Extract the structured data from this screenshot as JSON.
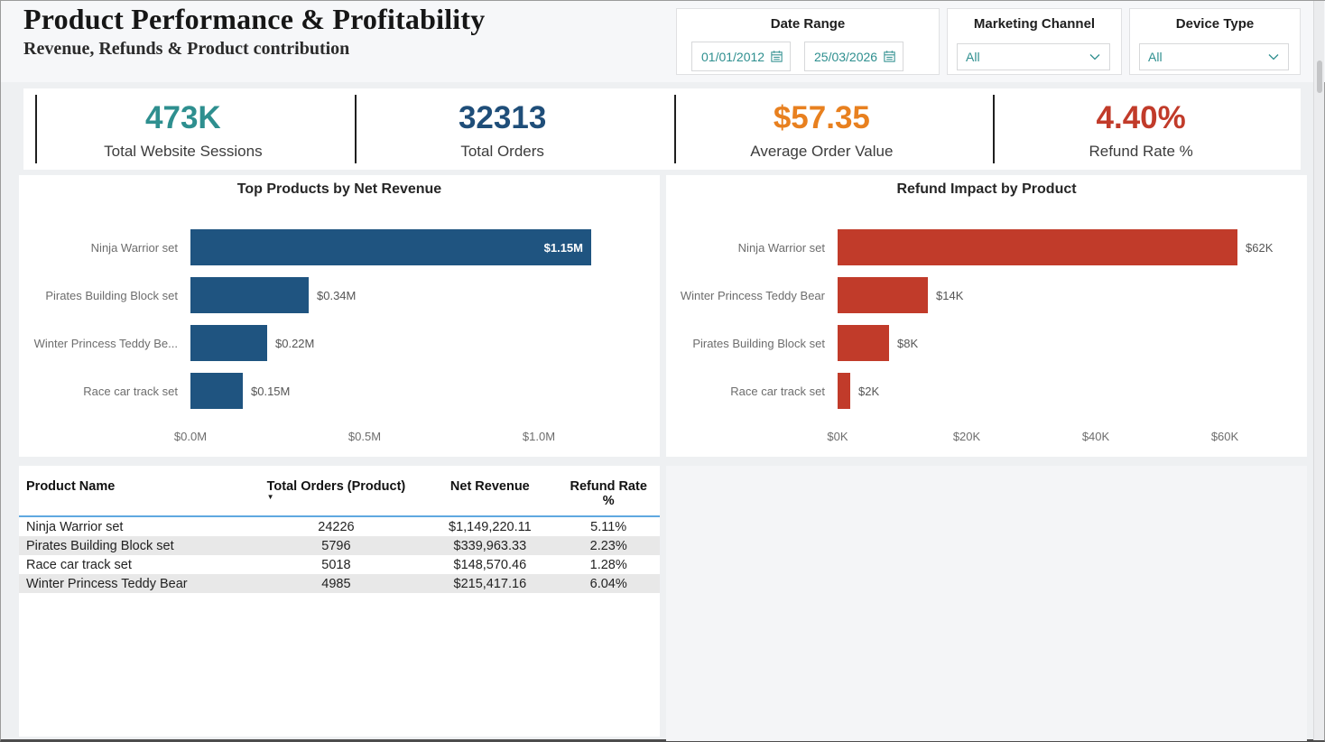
{
  "header": {
    "title": "Product Performance & Profitability",
    "subtitle": "Revenue, Refunds & Product contribution"
  },
  "filters": {
    "date_range": {
      "label": "Date Range",
      "start": "01/01/2012",
      "end": "25/03/2026"
    },
    "marketing_channel": {
      "label": "Marketing Channel",
      "value": "All"
    },
    "device_type": {
      "label": "Device Type",
      "value": "All"
    }
  },
  "kpis": [
    {
      "value": "473K",
      "label": "Total Website Sessions",
      "color": "#2e8f8f"
    },
    {
      "value": "32313",
      "label": "Total Orders",
      "color": "#1f4e79"
    },
    {
      "value": "$57.35",
      "label": "Average Order Value",
      "color": "#e8801f"
    },
    {
      "value": "4.40%",
      "label": "Refund Rate %",
      "color": "#c13b2a"
    }
  ],
  "chart_data": [
    {
      "type": "bar",
      "orientation": "horizontal",
      "title": "Top Products by Net Revenue",
      "categories": [
        "Ninja Warrior set",
        "Pirates Building Block set",
        "Winter Princess Teddy Be...",
        "Race car track set"
      ],
      "values": [
        1.15,
        0.34,
        0.22,
        0.15
      ],
      "value_labels": [
        "$1.15M",
        "$0.34M",
        "$0.22M",
        "$0.15M"
      ],
      "label_inside": [
        true,
        false,
        false,
        false
      ],
      "unit": "$M",
      "x_ticks": [
        "$0.0M",
        "$0.5M",
        "$1.0M"
      ],
      "x_tick_values": [
        0,
        0.5,
        1.0
      ],
      "xlim": [
        0,
        1.342
      ],
      "bar_color": "#1f5480",
      "grid": false,
      "legend": "none"
    },
    {
      "type": "bar",
      "orientation": "horizontal",
      "title": "Refund Impact by Product",
      "categories": [
        "Ninja Warrior set",
        "Winter Princess Teddy Bear",
        "Pirates Building Block set",
        "Race car track set"
      ],
      "values": [
        62,
        14,
        8,
        2
      ],
      "value_labels": [
        "$62K",
        "$14K",
        "$8K",
        "$2K"
      ],
      "label_inside": [
        false,
        false,
        false,
        false
      ],
      "unit": "$K",
      "x_ticks": [
        "$0K",
        "$20K",
        "$40K",
        "$60K"
      ],
      "x_tick_values": [
        0,
        20,
        40,
        60
      ],
      "xlim": [
        0,
        72.45
      ],
      "bar_color": "#c13b2a",
      "grid": false,
      "legend": "none"
    }
  ],
  "table": {
    "columns": [
      "Product Name",
      "Total Orders (Product)",
      "Net Revenue",
      "Refund Rate %"
    ],
    "sort_column_index": 1,
    "sort_direction": "desc",
    "rows": [
      [
        "Ninja Warrior set",
        "24226",
        "$1,149,220.11",
        "5.11%"
      ],
      [
        "Pirates Building Block set",
        "5796",
        "$339,963.33",
        "2.23%"
      ],
      [
        "Race car track set",
        "5018",
        "$148,570.46",
        "1.28%"
      ],
      [
        "Winter Princess Teddy Bear",
        "4985",
        "$215,417.16",
        "6.04%"
      ]
    ]
  }
}
